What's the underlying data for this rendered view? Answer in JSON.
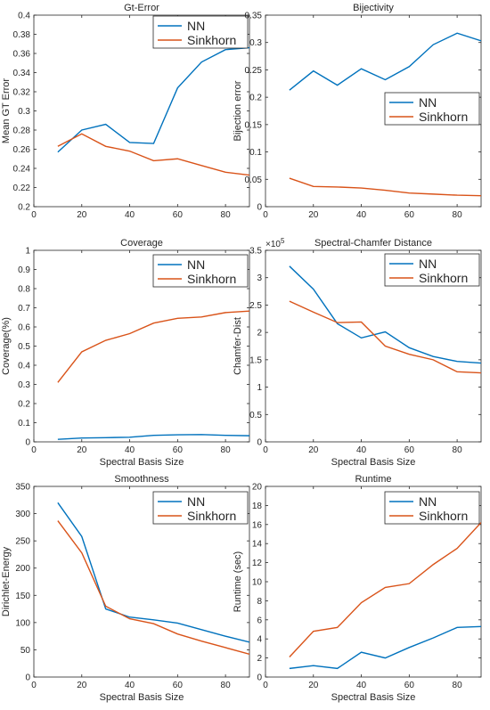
{
  "colors": {
    "NN": "#0072BD",
    "Sinkhorn": "#D95319",
    "axis": "#262626"
  },
  "chart_data": [
    {
      "type": "line",
      "title": "Gt-Error",
      "xlabel": "",
      "ylabel": "Mean GT Error",
      "xlim": [
        0,
        90
      ],
      "ylim": [
        0.2,
        0.4
      ],
      "xticks": [
        0,
        20,
        40,
        60,
        80
      ],
      "xtick_labels": [
        "0",
        "20",
        "40",
        "60",
        "80"
      ],
      "yticks": [
        0.2,
        0.22,
        0.24,
        0.26,
        0.28,
        0.3,
        0.32,
        0.34,
        0.36,
        0.38,
        0.4
      ],
      "ytick_labels": [
        "0.2",
        "0.22",
        "0.24",
        "0.26",
        "0.28",
        "0.3",
        "0.32",
        "0.34",
        "0.36",
        "0.38",
        "0.4"
      ],
      "exponent_label": "",
      "legend": "top-right",
      "series": [
        {
          "name": "NN",
          "x": [
            10,
            20,
            30,
            40,
            50,
            60,
            70,
            80,
            90
          ],
          "values": [
            0.257,
            0.28,
            0.286,
            0.267,
            0.266,
            0.324,
            0.351,
            0.364,
            0.366
          ]
        },
        {
          "name": "Sinkhorn",
          "x": [
            10,
            20,
            30,
            40,
            50,
            60,
            70,
            80,
            90
          ],
          "values": [
            0.263,
            0.276,
            0.263,
            0.258,
            0.248,
            0.25,
            0.243,
            0.236,
            0.233
          ]
        }
      ]
    },
    {
      "type": "line",
      "title": "Bijectivity",
      "xlabel": "",
      "ylabel": "Bijection error",
      "xlim": [
        0,
        90
      ],
      "ylim": [
        0,
        0.35
      ],
      "xticks": [
        0,
        20,
        40,
        60,
        80
      ],
      "xtick_labels": [
        "0",
        "20",
        "40",
        "60",
        "80"
      ],
      "yticks": [
        0,
        0.05,
        0.1,
        0.15,
        0.2,
        0.25,
        0.3,
        0.35
      ],
      "ytick_labels": [
        "0",
        "0.05",
        "0.1",
        "0.15",
        "0.2",
        "0.25",
        "0.3",
        "0.35"
      ],
      "exponent_label": "",
      "legend": "center-right",
      "series": [
        {
          "name": "NN",
          "x": [
            10,
            20,
            30,
            40,
            50,
            60,
            70,
            80,
            90
          ],
          "values": [
            0.213,
            0.248,
            0.222,
            0.252,
            0.232,
            0.256,
            0.296,
            0.317,
            0.303
          ]
        },
        {
          "name": "Sinkhorn",
          "x": [
            10,
            20,
            30,
            40,
            50,
            60,
            70,
            80,
            90
          ],
          "values": [
            0.052,
            0.037,
            0.036,
            0.034,
            0.03,
            0.025,
            0.023,
            0.021,
            0.02
          ]
        }
      ]
    },
    {
      "type": "line",
      "title": "Coverage",
      "xlabel": "Spectral Basis Size",
      "ylabel": "Coverage(%)",
      "xlim": [
        0,
        90
      ],
      "ylim": [
        0,
        1
      ],
      "xticks": [
        0,
        20,
        40,
        60,
        80
      ],
      "xtick_labels": [
        "0",
        "20",
        "40",
        "60",
        "80"
      ],
      "yticks": [
        0,
        0.1,
        0.2,
        0.3,
        0.4,
        0.5,
        0.6,
        0.7,
        0.8,
        0.9,
        1
      ],
      "ytick_labels": [
        "0",
        "0.1",
        "0.2",
        "0.3",
        "0.4",
        "0.5",
        "0.6",
        "0.7",
        "0.8",
        "0.9",
        "1"
      ],
      "exponent_label": "",
      "legend": "top-right",
      "series": [
        {
          "name": "NN",
          "x": [
            10,
            20,
            30,
            40,
            50,
            60,
            70,
            80,
            90
          ],
          "values": [
            0.013,
            0.02,
            0.022,
            0.024,
            0.034,
            0.037,
            0.038,
            0.034,
            0.032
          ]
        },
        {
          "name": "Sinkhorn",
          "x": [
            10,
            20,
            30,
            40,
            50,
            60,
            70,
            80,
            90
          ],
          "values": [
            0.31,
            0.47,
            0.53,
            0.565,
            0.62,
            0.645,
            0.652,
            0.675,
            0.683
          ]
        }
      ]
    },
    {
      "type": "line",
      "title": "Spectral-Chamfer Distance",
      "xlabel": "Spectral Basis Size",
      "ylabel": "Chamfer-Dist",
      "xlim": [
        0,
        90
      ],
      "ylim": [
        0,
        3.5
      ],
      "xticks": [
        0,
        20,
        40,
        60,
        80
      ],
      "xtick_labels": [
        "0",
        "20",
        "40",
        "60",
        "80"
      ],
      "yticks": [
        0,
        0.5,
        1,
        1.5,
        2,
        2.5,
        3,
        3.5
      ],
      "ytick_labels": [
        "0",
        "0.5",
        "1",
        "1.5",
        "2",
        "2.5",
        "3",
        "3.5"
      ],
      "exponent_label": "×10",
      "exponent_power": "5",
      "legend": "top-right",
      "series": [
        {
          "name": "NN",
          "x": [
            10,
            20,
            30,
            40,
            50,
            60,
            70,
            80,
            90
          ],
          "values": [
            3.21,
            2.79,
            2.16,
            1.9,
            2.01,
            1.72,
            1.56,
            1.47,
            1.44
          ]
        },
        {
          "name": "Sinkhorn",
          "x": [
            10,
            20,
            30,
            40,
            50,
            60,
            70,
            80,
            90
          ],
          "values": [
            2.57,
            2.37,
            2.18,
            2.19,
            1.75,
            1.6,
            1.5,
            1.28,
            1.26
          ]
        }
      ]
    },
    {
      "type": "line",
      "title": "Smoothness",
      "xlabel": "Spectral Basis Size",
      "ylabel": "Dirichlet-Energy",
      "xlim": [
        0,
        90
      ],
      "ylim": [
        0,
        350
      ],
      "xticks": [
        0,
        20,
        40,
        60,
        80
      ],
      "xtick_labels": [
        "0",
        "20",
        "40",
        "60",
        "80"
      ],
      "yticks": [
        0,
        50,
        100,
        150,
        200,
        250,
        300,
        350
      ],
      "ytick_labels": [
        "0",
        "50",
        "100",
        "150",
        "200",
        "250",
        "300",
        "350"
      ],
      "exponent_label": "",
      "legend": "top-right",
      "series": [
        {
          "name": "NN",
          "x": [
            10,
            20,
            30,
            40,
            50,
            60,
            70,
            80,
            90
          ],
          "values": [
            320,
            258,
            125,
            110,
            105,
            99,
            87,
            75,
            64
          ]
        },
        {
          "name": "Sinkhorn",
          "x": [
            10,
            20,
            30,
            40,
            50,
            60,
            70,
            80,
            90
          ],
          "values": [
            287,
            228,
            130,
            107,
            98,
            79,
            66,
            54,
            42
          ]
        }
      ]
    },
    {
      "type": "line",
      "title": "Runtime",
      "xlabel": "Spectral Basis Size",
      "ylabel": "Runtime (sec)",
      "xlim": [
        0,
        90
      ],
      "ylim": [
        0,
        20
      ],
      "xticks": [
        0,
        20,
        40,
        60,
        80
      ],
      "xtick_labels": [
        "0",
        "20",
        "40",
        "60",
        "80"
      ],
      "yticks": [
        0,
        2,
        4,
        6,
        8,
        10,
        12,
        14,
        16,
        18,
        20
      ],
      "ytick_labels": [
        "0",
        "2",
        "4",
        "6",
        "8",
        "10",
        "12",
        "14",
        "16",
        "18",
        "20"
      ],
      "exponent_label": "",
      "legend": "top-right",
      "series": [
        {
          "name": "NN",
          "x": [
            10,
            20,
            30,
            40,
            50,
            60,
            70,
            80,
            90
          ],
          "values": [
            0.9,
            1.2,
            0.9,
            2.6,
            2.0,
            3.1,
            4.1,
            5.2,
            5.3
          ]
        },
        {
          "name": "Sinkhorn",
          "x": [
            10,
            20,
            30,
            40,
            50,
            60,
            70,
            80,
            90
          ],
          "values": [
            2.1,
            4.8,
            5.2,
            7.8,
            9.4,
            9.8,
            11.8,
            13.5,
            16.2
          ]
        }
      ]
    }
  ]
}
